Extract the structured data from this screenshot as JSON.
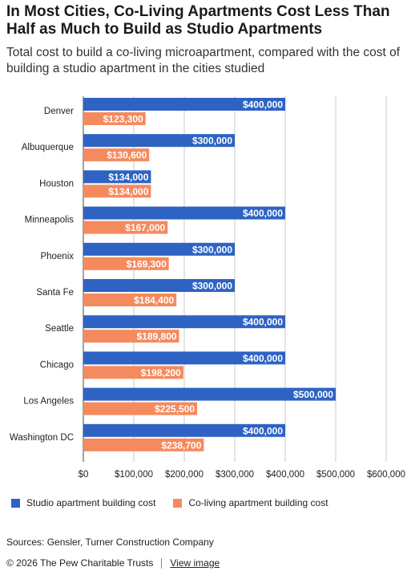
{
  "header": {
    "title": "In Most Cities, Co-Living Apartments Cost Less Than Half as Much to Build as Studio Apartments",
    "subtitle": "Total cost to build a co-living microapartment, compared with the cost of building a studio apartment in the cities studied"
  },
  "colors": {
    "studio": "#2e63c4",
    "coliving": "#f58a5e",
    "grid": "#c8c8c8"
  },
  "chart_data": {
    "type": "bar",
    "orientation": "horizontal",
    "categories": [
      "Denver",
      "Albuquerque",
      "Houston",
      "Minneapolis",
      "Phoenix",
      "Santa Fe",
      "Seattle",
      "Chicago",
      "Los Angeles",
      "Washington DC"
    ],
    "series": [
      {
        "name": "Studio apartment building cost",
        "values": [
          400000,
          300000,
          134000,
          400000,
          300000,
          300000,
          400000,
          400000,
          500000,
          400000
        ],
        "labels": [
          "$400,000",
          "$300,000",
          "$134,000",
          "$400,000",
          "$300,000",
          "$300,000",
          "$400,000",
          "$400,000",
          "$500,000",
          "$400,000"
        ]
      },
      {
        "name": "Co-living apartment building cost",
        "values": [
          123300,
          130600,
          134000,
          167000,
          169300,
          184400,
          189800,
          198200,
          225500,
          238700
        ],
        "labels": [
          "$123,300",
          "$130,600",
          "$134,000",
          "$167,000",
          "$169,300",
          "$184,400",
          "$189,800",
          "$198,200",
          "$225,500",
          "$238,700"
        ]
      }
    ],
    "xlim": [
      0,
      600000
    ],
    "ticks": [
      0,
      100000,
      200000,
      300000,
      400000,
      500000,
      600000
    ],
    "tick_labels": [
      "$0",
      "$100,000",
      "$200,000",
      "$300,000",
      "$400,000",
      "$500,000",
      "$600,000"
    ],
    "grid": true,
    "legend": "bottom-left"
  },
  "legend": {
    "studio_label": "Studio apartment building cost",
    "coliving_label": "Co-living apartment building cost"
  },
  "source": "Sources: Gensler, Turner Construction Company",
  "footer": {
    "copyright": "© 2026 The Pew Charitable Trusts",
    "link": "View image"
  }
}
